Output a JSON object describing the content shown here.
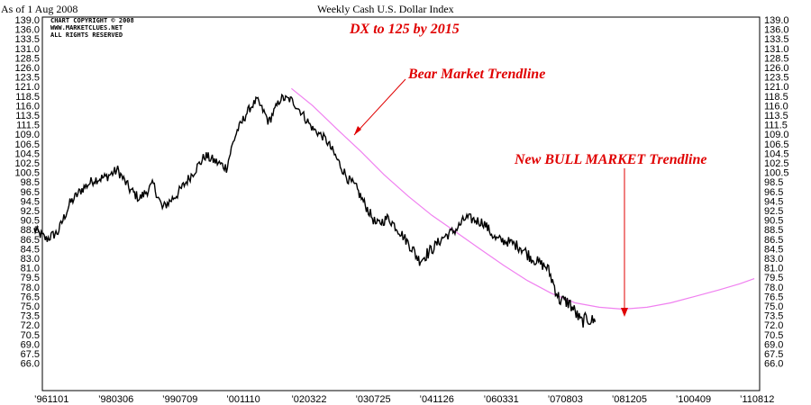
{
  "header": {
    "as_of": "As of 1 Aug 2008",
    "title": "Weekly Cash U.S. Dollar Index"
  },
  "copyright": [
    "CHART COPYRIGHT © 2008",
    "WWW.MARKETCLUES.NET",
    "ALL RIGHTS RESERVED"
  ],
  "annotations": {
    "forecast": "DX to 125 by 2015",
    "bear": "Bear Market Trendline",
    "bull": "New BULL MARKET Trendline"
  },
  "colors": {
    "price": "#000000",
    "trendline": "#f080f0",
    "annotation": "#e00000"
  },
  "chart_data": {
    "type": "line",
    "title": "Weekly Cash U.S. Dollar Index",
    "xlabel": "",
    "ylabel": "",
    "ylim": [
      66.0,
      139.0
    ],
    "y_ticks": [
      "139.0",
      "136.0",
      "133.5",
      "131.0",
      "128.5",
      "126.0",
      "123.5",
      "121.0",
      "118.5",
      "116.0",
      "113.5",
      "111.5",
      "109.0",
      "106.5",
      "104.5",
      "102.5",
      "100.5",
      "98.5",
      "96.5",
      "94.5",
      "92.5",
      "90.5",
      "88.5",
      "86.5",
      "84.5",
      "83.0",
      "81.0",
      "79.5",
      "78.0",
      "76.5",
      "75.0",
      "73.5",
      "72.0",
      "70.5",
      "69.0",
      "67.5",
      "66.0"
    ],
    "x_ticks": [
      "961101",
      "980306",
      "990709",
      "001110",
      "020322",
      "030725",
      "041126",
      "060331",
      "070803",
      "081205",
      "100409",
      "110812"
    ],
    "grid": false,
    "series": [
      {
        "name": "",
        "points": [
          [
            "1996-11-01",
            88.5
          ],
          [
            "1997-02-01",
            86.5
          ],
          [
            "1997-05-01",
            88.0
          ],
          [
            "1997-08-01",
            94.0
          ],
          [
            "1997-11-01",
            97.0
          ],
          [
            "1998-02-01",
            99.0
          ],
          [
            "1998-05-01",
            99.5
          ],
          [
            "1998-08-01",
            101.0
          ],
          [
            "1998-11-01",
            97.0
          ],
          [
            "1999-01-15",
            95.0
          ],
          [
            "1999-05-01",
            98.0
          ],
          [
            "1999-07-09",
            93.0
          ],
          [
            "1999-11-01",
            96.0
          ],
          [
            "2000-03-01",
            100.5
          ],
          [
            "2000-06-01",
            104.0
          ],
          [
            "2000-11-10",
            101.5
          ],
          [
            "2001-02-01",
            110.0
          ],
          [
            "2001-05-01",
            115.0
          ],
          [
            "2001-07-01",
            117.5
          ],
          [
            "2001-10-01",
            112.0
          ],
          [
            "2002-01-01",
            118.0
          ],
          [
            "2002-03-22",
            117.5
          ],
          [
            "2002-06-01",
            114.5
          ],
          [
            "2002-09-01",
            110.5
          ],
          [
            "2002-12-01",
            108.0
          ],
          [
            "2003-03-01",
            103.5
          ],
          [
            "2003-06-01",
            99.0
          ],
          [
            "2003-07-25",
            97.5
          ],
          [
            "2003-10-01",
            94.0
          ],
          [
            "2004-01-01",
            89.5
          ],
          [
            "2004-04-01",
            91.0
          ],
          [
            "2004-07-01",
            88.0
          ],
          [
            "2004-11-26",
            82.5
          ],
          [
            "2005-03-01",
            84.5
          ],
          [
            "2005-06-01",
            87.0
          ],
          [
            "2005-09-01",
            88.5
          ],
          [
            "2005-11-15",
            91.0
          ],
          [
            "2006-03-31",
            90.0
          ],
          [
            "2006-07-01",
            86.5
          ],
          [
            "2006-10-01",
            86.0
          ],
          [
            "2007-01-01",
            85.0
          ],
          [
            "2007-04-01",
            83.0
          ],
          [
            "2007-08-03",
            81.0
          ],
          [
            "2007-11-01",
            76.0
          ],
          [
            "2008-01-15",
            75.5
          ],
          [
            "2008-04-15",
            72.5
          ],
          [
            "2008-06-01",
            73.0
          ],
          [
            "2008-08-01",
            72.5
          ]
        ]
      },
      {
        "name": "",
        "points": [
          [
            "2002-03-22",
            120.5
          ],
          [
            "2002-09-01",
            116.0
          ],
          [
            "2003-03-01",
            110.5
          ],
          [
            "2003-09-01",
            105.0
          ],
          [
            "2004-03-01",
            100.0
          ],
          [
            "2004-09-01",
            95.5
          ],
          [
            "2005-03-01",
            91.5
          ],
          [
            "2005-09-01",
            88.0
          ],
          [
            "2006-03-01",
            84.5
          ],
          [
            "2006-09-01",
            81.5
          ],
          [
            "2007-03-01",
            79.0
          ],
          [
            "2007-09-01",
            77.0
          ],
          [
            "2008-03-01",
            75.5
          ],
          [
            "2008-09-01",
            74.8
          ],
          [
            "2009-03-01",
            74.5
          ],
          [
            "2009-09-01",
            74.8
          ],
          [
            "2010-03-01",
            75.5
          ],
          [
            "2010-09-01",
            76.5
          ],
          [
            "2011-03-01",
            77.5
          ],
          [
            "2011-08-12",
            78.5
          ],
          [
            "2011-12-01",
            79.3
          ]
        ]
      }
    ]
  }
}
